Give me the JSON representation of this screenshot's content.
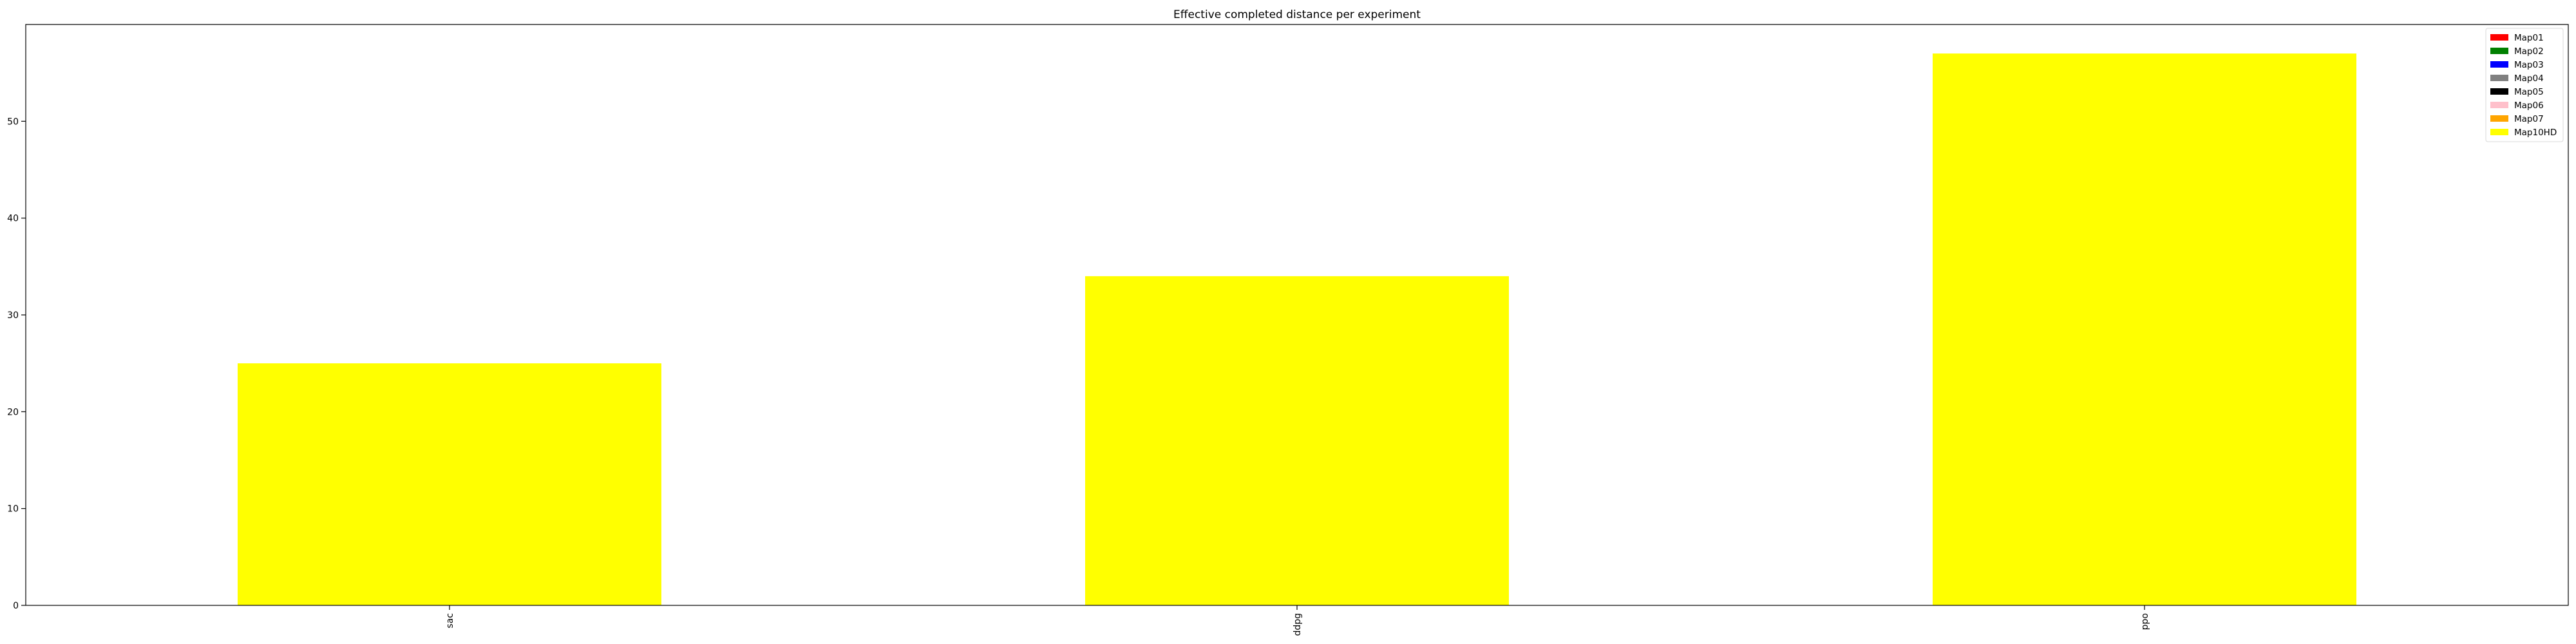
{
  "chart_data": {
    "type": "bar",
    "title": "Effective completed distance per experiment",
    "xlabel": "",
    "ylabel": "",
    "categories": [
      "sac",
      "ddpg",
      "ppo"
    ],
    "series": [
      {
        "name": "Map01",
        "color": "#ff0000",
        "values": [
          0,
          0,
          0
        ]
      },
      {
        "name": "Map02",
        "color": "#008000",
        "values": [
          0,
          0,
          0
        ]
      },
      {
        "name": "Map03",
        "color": "#0000ff",
        "values": [
          0,
          0,
          0
        ]
      },
      {
        "name": "Map04",
        "color": "#808080",
        "values": [
          0,
          0,
          0
        ]
      },
      {
        "name": "Map05",
        "color": "#000000",
        "values": [
          0,
          0,
          0
        ]
      },
      {
        "name": "Map06",
        "color": "#ffc0cb",
        "values": [
          0,
          0,
          0
        ]
      },
      {
        "name": "Map07",
        "color": "#ffa500",
        "values": [
          0,
          0,
          0
        ]
      },
      {
        "name": "Map10HD",
        "color": "#ffff00",
        "values": [
          25,
          34,
          57
        ]
      }
    ],
    "ylim": [
      0,
      60
    ],
    "yticks": [
      0,
      10,
      20,
      30,
      40,
      50
    ],
    "grid": false,
    "legend": "top-right",
    "stacked": true
  }
}
